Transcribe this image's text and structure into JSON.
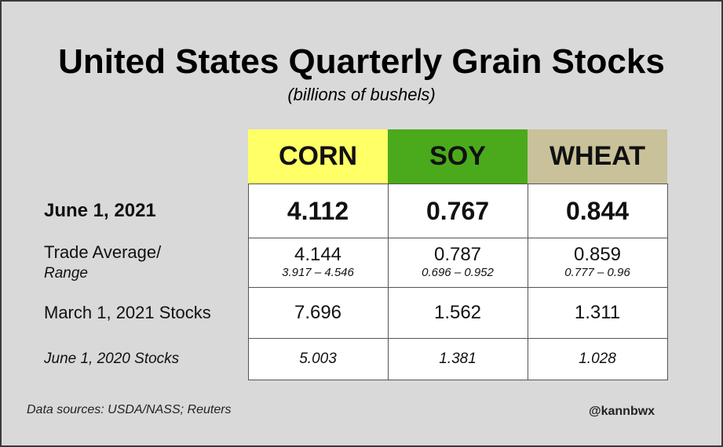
{
  "title": "United States Quarterly Grain Stocks",
  "subtitle": "(billions of bushels)",
  "colors": {
    "corn": "#ffff66",
    "soy": "#4aaa1c",
    "wheat": "#c8c19a",
    "background": "#d9d9d9"
  },
  "chart_data": {
    "type": "table",
    "columns": [
      "CORN",
      "SOY",
      "WHEAT"
    ],
    "rows": [
      {
        "label": "June 1, 2021",
        "values": [
          "4.112",
          "0.767",
          "0.844"
        ]
      },
      {
        "label": "Trade Average/",
        "sublabel": "Range",
        "values": [
          "4.144",
          "0.787",
          "0.859"
        ],
        "ranges": [
          "3.917 – 4.546",
          "0.696 – 0.952",
          "0.777 – 0.96"
        ]
      },
      {
        "label": "March 1, 2021 Stocks",
        "values": [
          "7.696",
          "1.562",
          "1.311"
        ]
      },
      {
        "label": "June 1, 2020 Stocks",
        "values": [
          "5.003",
          "1.381",
          "1.028"
        ]
      }
    ]
  },
  "footer": {
    "source": "Data sources: USDA/NASS; Reuters",
    "handle": "@kannbwx"
  }
}
